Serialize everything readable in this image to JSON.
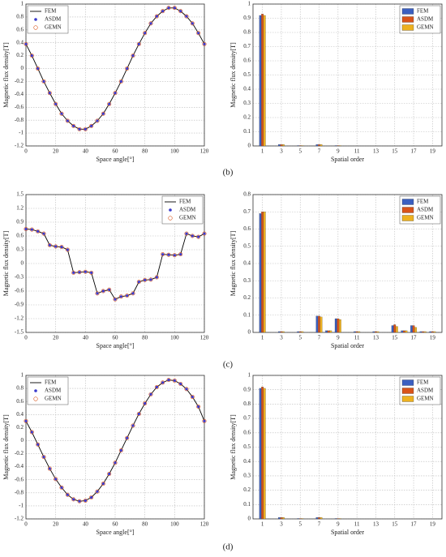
{
  "panel_labels": [
    "(b)",
    "(c)",
    "(d)"
  ],
  "chart_data": [
    {
      "type": "line",
      "xlabel": "Space angle[°]",
      "ylabel": "Magnetic flux density[T]",
      "legend": "upper left",
      "grid": true,
      "xlim": [
        0,
        120
      ],
      "xticks": [
        0,
        20,
        40,
        60,
        80,
        100,
        120
      ],
      "ylim": [
        -1.2,
        1
      ],
      "yticks": [
        -1.2,
        -1,
        -0.8,
        -0.6,
        -0.4,
        -0.2,
        0,
        0.2,
        0.4,
        0.6,
        0.8,
        1
      ],
      "x": [
        0,
        4,
        8,
        12,
        16,
        20,
        24,
        28,
        32,
        36,
        40,
        44,
        48,
        52,
        56,
        60,
        64,
        68,
        72,
        76,
        80,
        84,
        88,
        92,
        96,
        100,
        104,
        108,
        112,
        116,
        120
      ],
      "series": [
        {
          "name": "FEM",
          "color": "#000000",
          "marker": "line",
          "values": [
            0.38,
            0.2,
            0,
            -0.2,
            -0.38,
            -0.55,
            -0.7,
            -0.81,
            -0.89,
            -0.94,
            -0.94,
            -0.89,
            -0.81,
            -0.7,
            -0.55,
            -0.38,
            -0.2,
            0,
            0.2,
            0.38,
            0.55,
            0.7,
            0.81,
            0.89,
            0.94,
            0.94,
            0.89,
            0.81,
            0.7,
            0.55,
            0.38
          ]
        },
        {
          "name": "ASDM",
          "color": "#3a3acc",
          "marker": "star",
          "values": [
            0.38,
            0.2,
            0,
            -0.2,
            -0.38,
            -0.55,
            -0.7,
            -0.81,
            -0.89,
            -0.94,
            -0.94,
            -0.89,
            -0.81,
            -0.7,
            -0.55,
            -0.38,
            -0.2,
            0,
            0.2,
            0.38,
            0.55,
            0.7,
            0.81,
            0.89,
            0.94,
            0.94,
            0.89,
            0.81,
            0.7,
            0.55,
            0.38
          ]
        },
        {
          "name": "GEMN",
          "color": "#d95319",
          "marker": "circle",
          "values": [
            0.38,
            0.2,
            0,
            -0.2,
            -0.38,
            -0.55,
            -0.7,
            -0.81,
            -0.89,
            -0.94,
            -0.94,
            -0.89,
            -0.81,
            -0.7,
            -0.55,
            -0.38,
            -0.2,
            0,
            0.2,
            0.38,
            0.55,
            0.7,
            0.81,
            0.89,
            0.94,
            0.94,
            0.89,
            0.81,
            0.7,
            0.55,
            0.38
          ]
        }
      ]
    },
    {
      "type": "bar",
      "xlabel": "Spatial order",
      "ylabel": "Magnetic flux density[T]",
      "legend": "upper right",
      "grid": true,
      "ylim": [
        0,
        1
      ],
      "yticks": [
        0,
        0.1,
        0.2,
        0.3,
        0.4,
        0.5,
        0.6,
        0.7,
        0.8,
        0.9,
        1
      ],
      "categories": [
        1,
        null,
        3,
        null,
        5,
        null,
        7,
        null,
        9,
        null,
        11,
        null,
        13,
        null,
        15,
        null,
        17,
        null,
        19
      ],
      "series": [
        {
          "name": "FEM",
          "color": "#3b5fc0",
          "values": [
            0.92,
            0,
            0.01,
            0,
            0.003,
            0,
            0.01,
            0,
            0.003,
            0,
            0,
            0,
            0,
            0,
            0,
            0,
            0,
            0,
            0
          ]
        },
        {
          "name": "ASDM",
          "color": "#d95319",
          "values": [
            0.93,
            0,
            0.01,
            0,
            0.003,
            0,
            0.01,
            0,
            0.003,
            0,
            0,
            0,
            0,
            0,
            0,
            0,
            0,
            0,
            0
          ]
        },
        {
          "name": "GEMN",
          "color": "#edb120",
          "values": [
            0.92,
            0,
            0.01,
            0,
            0.003,
            0,
            0.01,
            0,
            0.003,
            0,
            0,
            0,
            0,
            0,
            0,
            0,
            0,
            0,
            0
          ]
        }
      ]
    },
    {
      "type": "line",
      "xlabel": "Space angle[°]",
      "ylabel": "Magnetic flux density[T]",
      "legend": "upper right",
      "grid": true,
      "xlim": [
        0,
        120
      ],
      "xticks": [
        0,
        20,
        40,
        60,
        80,
        100,
        120
      ],
      "ylim": [
        -1.5,
        1.5
      ],
      "yticks": [
        -1.5,
        -1.2,
        -0.9,
        -0.6,
        -0.3,
        0,
        0.3,
        0.6,
        0.9,
        1.2,
        1.5
      ],
      "x": [
        0,
        4,
        8,
        12,
        16,
        20,
        24,
        28,
        32,
        36,
        40,
        44,
        48,
        52,
        56,
        60,
        64,
        68,
        72,
        76,
        80,
        84,
        88,
        92,
        96,
        100,
        104,
        108,
        112,
        116,
        120
      ],
      "series": [
        {
          "name": "FEM",
          "color": "#000000",
          "marker": "line",
          "values": [
            0.75,
            0.74,
            0.7,
            0.65,
            0.4,
            0.37,
            0.36,
            0.3,
            -0.2,
            -0.19,
            -0.18,
            -0.2,
            -0.65,
            -0.6,
            -0.57,
            -0.78,
            -0.72,
            -0.7,
            -0.65,
            -0.4,
            -0.36,
            -0.35,
            -0.3,
            0.2,
            0.19,
            0.18,
            0.2,
            0.65,
            0.6,
            0.58,
            0.65
          ]
        },
        {
          "name": "ASDM",
          "color": "#3a3acc",
          "marker": "star",
          "values": [
            0.75,
            0.74,
            0.7,
            0.65,
            0.4,
            0.37,
            0.36,
            0.3,
            -0.2,
            -0.19,
            -0.18,
            -0.2,
            -0.65,
            -0.6,
            -0.57,
            -0.78,
            -0.72,
            -0.7,
            -0.65,
            -0.4,
            -0.36,
            -0.35,
            -0.3,
            0.2,
            0.19,
            0.18,
            0.2,
            0.65,
            0.6,
            0.58,
            0.65
          ]
        },
        {
          "name": "GEMN",
          "color": "#d95319",
          "marker": "circle",
          "values": [
            0.75,
            0.74,
            0.7,
            0.65,
            0.4,
            0.37,
            0.36,
            0.3,
            -0.2,
            -0.19,
            -0.18,
            -0.2,
            -0.65,
            -0.6,
            -0.57,
            -0.78,
            -0.72,
            -0.7,
            -0.65,
            -0.4,
            -0.36,
            -0.35,
            -0.3,
            0.2,
            0.19,
            0.18,
            0.2,
            0.65,
            0.6,
            0.58,
            0.65
          ]
        }
      ]
    },
    {
      "type": "bar",
      "xlabel": "Spatial order",
      "ylabel": "Magnetic flux density[T]",
      "legend": "upper right",
      "grid": true,
      "ylim": [
        0,
        0.8
      ],
      "yticks": [
        0,
        0.1,
        0.2,
        0.3,
        0.4,
        0.5,
        0.6,
        0.7,
        0.8
      ],
      "categories": [
        1,
        null,
        3,
        null,
        5,
        null,
        7,
        null,
        9,
        null,
        11,
        null,
        13,
        null,
        15,
        null,
        17,
        null,
        19
      ],
      "series": [
        {
          "name": "FEM",
          "color": "#3b5fc0",
          "values": [
            0.69,
            0,
            0.005,
            0,
            0.005,
            0,
            0.095,
            0.01,
            0.08,
            0,
            0.005,
            0,
            0.005,
            0,
            0.04,
            0.01,
            0.04,
            0.005,
            0.005
          ]
        },
        {
          "name": "ASDM",
          "color": "#d95319",
          "values": [
            0.7,
            0,
            0.005,
            0,
            0.005,
            0,
            0.095,
            0.01,
            0.08,
            0,
            0.005,
            0,
            0.005,
            0,
            0.045,
            0.01,
            0.04,
            0.005,
            0.005
          ]
        },
        {
          "name": "GEMN",
          "color": "#edb120",
          "values": [
            0.7,
            0,
            0.005,
            0,
            0.005,
            0,
            0.09,
            0.01,
            0.075,
            0,
            0.005,
            0,
            0.005,
            0,
            0.035,
            0.01,
            0.03,
            0.005,
            0.005
          ]
        }
      ]
    },
    {
      "type": "line",
      "xlabel": "Space angle[°]",
      "ylabel": "Magnetic flux density[T]",
      "legend": "upper left",
      "grid": true,
      "xlim": [
        0,
        120
      ],
      "xticks": [
        0,
        20,
        40,
        60,
        80,
        100,
        120
      ],
      "ylim": [
        -1.2,
        1
      ],
      "yticks": [
        -1.2,
        -1,
        -0.8,
        -0.6,
        -0.4,
        -0.2,
        0,
        0.2,
        0.4,
        0.6,
        0.8,
        1
      ],
      "x": [
        0,
        4,
        8,
        12,
        16,
        20,
        24,
        28,
        32,
        36,
        40,
        44,
        48,
        52,
        56,
        60,
        64,
        68,
        72,
        76,
        80,
        84,
        88,
        92,
        96,
        100,
        104,
        108,
        112,
        116,
        120
      ],
      "series": [
        {
          "name": "FEM",
          "color": "#000000",
          "marker": "line",
          "values": [
            0.3,
            0.13,
            -0.06,
            -0.25,
            -0.43,
            -0.59,
            -0.72,
            -0.83,
            -0.9,
            -0.93,
            -0.92,
            -0.87,
            -0.78,
            -0.66,
            -0.51,
            -0.34,
            -0.15,
            0.04,
            0.23,
            0.41,
            0.57,
            0.71,
            0.82,
            0.89,
            0.93,
            0.92,
            0.87,
            0.79,
            0.67,
            0.52,
            0.3
          ]
        },
        {
          "name": "ASDM",
          "color": "#3a3acc",
          "marker": "star",
          "values": [
            0.3,
            0.13,
            -0.06,
            -0.25,
            -0.43,
            -0.59,
            -0.72,
            -0.83,
            -0.9,
            -0.93,
            -0.92,
            -0.87,
            -0.78,
            -0.66,
            -0.51,
            -0.34,
            -0.15,
            0.04,
            0.23,
            0.41,
            0.57,
            0.71,
            0.82,
            0.89,
            0.93,
            0.92,
            0.87,
            0.79,
            0.67,
            0.52,
            0.3
          ]
        },
        {
          "name": "GEMN",
          "color": "#d95319",
          "marker": "circle",
          "values": [
            0.3,
            0.13,
            -0.06,
            -0.25,
            -0.43,
            -0.59,
            -0.72,
            -0.83,
            -0.9,
            -0.93,
            -0.92,
            -0.87,
            -0.78,
            -0.66,
            -0.51,
            -0.34,
            -0.15,
            0.04,
            0.23,
            0.41,
            0.57,
            0.71,
            0.82,
            0.89,
            0.93,
            0.92,
            0.87,
            0.79,
            0.67,
            0.52,
            0.3
          ]
        }
      ]
    },
    {
      "type": "bar",
      "xlabel": "Spatial order",
      "ylabel": "Magnetic flux density[T]",
      "legend": "upper right",
      "grid": true,
      "ylim": [
        0,
        1
      ],
      "yticks": [
        0,
        0.1,
        0.2,
        0.3,
        0.4,
        0.5,
        0.6,
        0.7,
        0.8,
        0.9,
        1
      ],
      "categories": [
        1,
        null,
        3,
        null,
        5,
        null,
        7,
        null,
        9,
        null,
        11,
        null,
        13,
        null,
        15,
        null,
        17,
        null,
        19
      ],
      "series": [
        {
          "name": "FEM",
          "color": "#3b5fc0",
          "values": [
            0.91,
            0,
            0.01,
            0,
            0.003,
            0,
            0.01,
            0,
            0.003,
            0,
            0,
            0,
            0,
            0,
            0,
            0,
            0,
            0,
            0
          ]
        },
        {
          "name": "ASDM",
          "color": "#d95319",
          "values": [
            0.92,
            0,
            0.01,
            0,
            0.003,
            0,
            0.01,
            0,
            0.003,
            0,
            0,
            0,
            0,
            0,
            0,
            0,
            0,
            0,
            0
          ]
        },
        {
          "name": "GEMN",
          "color": "#edb120",
          "values": [
            0.91,
            0,
            0.01,
            0,
            0.003,
            0,
            0.01,
            0,
            0.003,
            0,
            0,
            0,
            0,
            0,
            0,
            0,
            0,
            0,
            0
          ]
        }
      ]
    }
  ]
}
